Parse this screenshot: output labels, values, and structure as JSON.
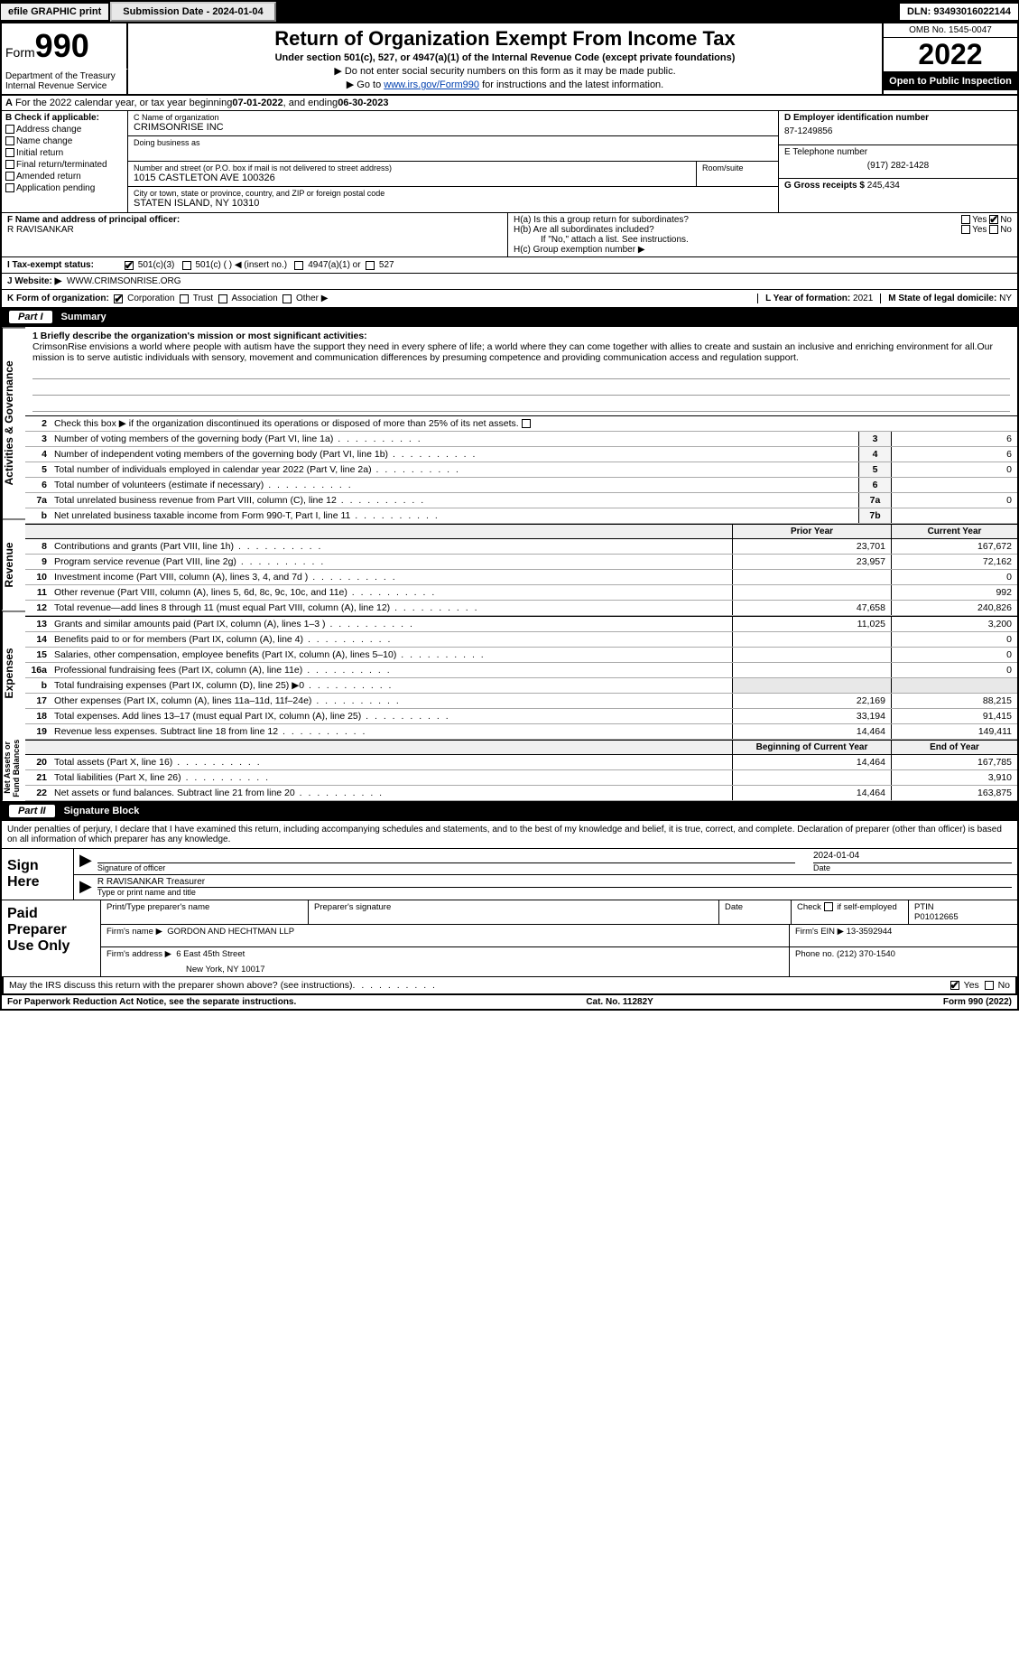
{
  "topbar": {
    "efile": "efile GRAPHIC print",
    "submission_label": "Submission Date - 2024-01-04",
    "dln_label": "DLN: 93493016022144"
  },
  "header": {
    "form_prefix": "Form",
    "form_number": "990",
    "title": "Return of Organization Exempt From Income Tax",
    "subtitle": "Under section 501(c), 527, or 4947(a)(1) of the Internal Revenue Code (except private foundations)",
    "note1": "▶ Do not enter social security numbers on this form as it may be made public.",
    "note2_pre": "▶ Go to ",
    "note2_link": "www.irs.gov/Form990",
    "note2_post": " for instructions and the latest information.",
    "dept": "Department of the Treasury\nInternal Revenue Service",
    "omb": "OMB No. 1545-0047",
    "year": "2022",
    "open": "Open to Public Inspection"
  },
  "row_a": {
    "text_pre": "For the 2022 calendar year, or tax year beginning ",
    "begin": "07-01-2022",
    "mid": "   , and ending ",
    "end": "06-30-2023"
  },
  "box_b": {
    "label": "B Check if applicable:",
    "items": [
      "Address change",
      "Name change",
      "Initial return",
      "Final return/terminated",
      "Amended return",
      "Application pending"
    ]
  },
  "box_c": {
    "name_label": "C Name of organization",
    "name": "CRIMSONRISE INC",
    "dba_label": "Doing business as",
    "dba": "",
    "street_label": "Number and street (or P.O. box if mail is not delivered to street address)",
    "room_label": "Room/suite",
    "street": "1015 CASTLETON AVE 100326",
    "city_label": "City or town, state or province, country, and ZIP or foreign postal code",
    "city": "STATEN ISLAND, NY  10310"
  },
  "box_d": {
    "ein_label": "D Employer identification number",
    "ein": "87-1249856",
    "phone_label": "E Telephone number",
    "phone": "(917) 282-1428",
    "gross_label": "G Gross receipts $",
    "gross": "245,434"
  },
  "box_f": {
    "label": "F Name and address of principal officer:",
    "name": "R RAVISANKAR"
  },
  "box_h": {
    "ha": "H(a)  Is this a group return for subordinates?",
    "hb": "H(b)  Are all subordinates included?",
    "hb_note": "If \"No,\" attach a list. See instructions.",
    "hc": "H(c)  Group exemption number ▶",
    "yes": "Yes",
    "no": "No"
  },
  "row_i": {
    "label": "I   Tax-exempt status:",
    "opts": [
      "501(c)(3)",
      "501(c) (  ) ◀ (insert no.)",
      "4947(a)(1) or",
      "527"
    ]
  },
  "row_j": {
    "label": "J   Website: ▶",
    "val": "WWW.CRIMSONRISE.ORG"
  },
  "row_k": {
    "label": "K Form of organization:",
    "opts": [
      "Corporation",
      "Trust",
      "Association",
      "Other ▶"
    ]
  },
  "row_l": {
    "label": "L Year of formation:",
    "val": "2021"
  },
  "row_m": {
    "label": "M State of legal domicile:",
    "val": "NY"
  },
  "part1": {
    "num": "Part I",
    "title": "Summary"
  },
  "mission": {
    "label": "1   Briefly describe the organization's mission or most significant activities:",
    "text": "CrimsonRise envisions a world where people with autism have the support they need in every sphere of life; a world where they can come together with allies to create and sustain an inclusive and enriching environment for all.Our mission is to serve autistic individuals with sensory, movement and communication differences by presuming competence and providing communication access and regulation support."
  },
  "line2": "Check this box ▶        if the organization discontinued its operations or disposed of more than 25% of its net assets.",
  "gov_lines": [
    {
      "n": "3",
      "t": "Number of voting members of the governing body (Part VI, line 1a)",
      "bn": "3",
      "v": "6"
    },
    {
      "n": "4",
      "t": "Number of independent voting members of the governing body (Part VI, line 1b)",
      "bn": "4",
      "v": "6"
    },
    {
      "n": "5",
      "t": "Total number of individuals employed in calendar year 2022 (Part V, line 2a)",
      "bn": "5",
      "v": "0"
    },
    {
      "n": "6",
      "t": "Total number of volunteers (estimate if necessary)",
      "bn": "6",
      "v": ""
    },
    {
      "n": "7a",
      "t": "Total unrelated business revenue from Part VIII, column (C), line 12",
      "bn": "7a",
      "v": "0"
    },
    {
      "n": "b",
      "t": "Net unrelated business taxable income from Form 990-T, Part I, line 11",
      "bn": "7b",
      "v": ""
    }
  ],
  "col_headers": {
    "prior": "Prior Year",
    "current": "Current Year"
  },
  "rev_lines": [
    {
      "n": "8",
      "t": "Contributions and grants (Part VIII, line 1h)",
      "c1": "23,701",
      "c2": "167,672"
    },
    {
      "n": "9",
      "t": "Program service revenue (Part VIII, line 2g)",
      "c1": "23,957",
      "c2": "72,162"
    },
    {
      "n": "10",
      "t": "Investment income (Part VIII, column (A), lines 3, 4, and 7d )",
      "c1": "",
      "c2": "0"
    },
    {
      "n": "11",
      "t": "Other revenue (Part VIII, column (A), lines 5, 6d, 8c, 9c, 10c, and 11e)",
      "c1": "",
      "c2": "992"
    },
    {
      "n": "12",
      "t": "Total revenue—add lines 8 through 11 (must equal Part VIII, column (A), line 12)",
      "c1": "47,658",
      "c2": "240,826"
    }
  ],
  "exp_lines": [
    {
      "n": "13",
      "t": "Grants and similar amounts paid (Part IX, column (A), lines 1–3 )",
      "c1": "11,025",
      "c2": "3,200"
    },
    {
      "n": "14",
      "t": "Benefits paid to or for members (Part IX, column (A), line 4)",
      "c1": "",
      "c2": "0"
    },
    {
      "n": "15",
      "t": "Salaries, other compensation, employee benefits (Part IX, column (A), lines 5–10)",
      "c1": "",
      "c2": "0"
    },
    {
      "n": "16a",
      "t": "Professional fundraising fees (Part IX, column (A), line 11e)",
      "c1": "",
      "c2": "0"
    },
    {
      "n": "b",
      "t": "Total fundraising expenses (Part IX, column (D), line 25) ▶0",
      "c1": "shaded",
      "c2": "shaded"
    },
    {
      "n": "17",
      "t": "Other expenses (Part IX, column (A), lines 11a–11d, 11f–24e)",
      "c1": "22,169",
      "c2": "88,215"
    },
    {
      "n": "18",
      "t": "Total expenses. Add lines 13–17 (must equal Part IX, column (A), line 25)",
      "c1": "33,194",
      "c2": "91,415"
    },
    {
      "n": "19",
      "t": "Revenue less expenses. Subtract line 18 from line 12",
      "c1": "14,464",
      "c2": "149,411"
    }
  ],
  "net_headers": {
    "begin": "Beginning of Current Year",
    "end": "End of Year"
  },
  "net_lines": [
    {
      "n": "20",
      "t": "Total assets (Part X, line 16)",
      "c1": "14,464",
      "c2": "167,785"
    },
    {
      "n": "21",
      "t": "Total liabilities (Part X, line 26)",
      "c1": "",
      "c2": "3,910"
    },
    {
      "n": "22",
      "t": "Net assets or fund balances. Subtract line 21 from line 20",
      "c1": "14,464",
      "c2": "163,875"
    }
  ],
  "side_labels": {
    "gov": "Activities & Governance",
    "rev": "Revenue",
    "exp": "Expenses",
    "net": "Net Assets or Fund Balances"
  },
  "part2": {
    "num": "Part II",
    "title": "Signature Block"
  },
  "sig": {
    "intro": "Under penalties of perjury, I declare that I have examined this return, including accompanying schedules and statements, and to the best of my knowledge and belief, it is true, correct, and complete. Declaration of preparer (other than officer) is based on all information of which preparer has any knowledge.",
    "sign_here": "Sign Here",
    "sig_officer": "Signature of officer",
    "date_lbl": "Date",
    "date": "2024-01-04",
    "name": "R RAVISANKAR  Treasurer",
    "name_lbl": "Type or print name and title"
  },
  "paid": {
    "label": "Paid Preparer Use Only",
    "h1": "Print/Type preparer's name",
    "h2": "Preparer's signature",
    "h3": "Date",
    "h4_pre": "Check",
    "h4_post": "if self-employed",
    "h5": "PTIN",
    "ptin": "P01012665",
    "firm_name_lbl": "Firm's name    ▶",
    "firm_name": "GORDON AND HECHTMAN LLP",
    "firm_ein_lbl": "Firm's EIN ▶",
    "firm_ein": "13-3592944",
    "firm_addr_lbl": "Firm's address ▶",
    "firm_addr1": "6 East 45th Street",
    "firm_addr2": "New York, NY  10017",
    "phone_lbl": "Phone no.",
    "phone": "(212) 370-1540"
  },
  "may": "May the IRS discuss this return with the preparer shown above? (see instructions)",
  "footer": {
    "left": "For Paperwork Reduction Act Notice, see the separate instructions.",
    "mid": "Cat. No. 11282Y",
    "right_pre": "Form ",
    "right_num": "990",
    "right_post": " (2022)"
  }
}
